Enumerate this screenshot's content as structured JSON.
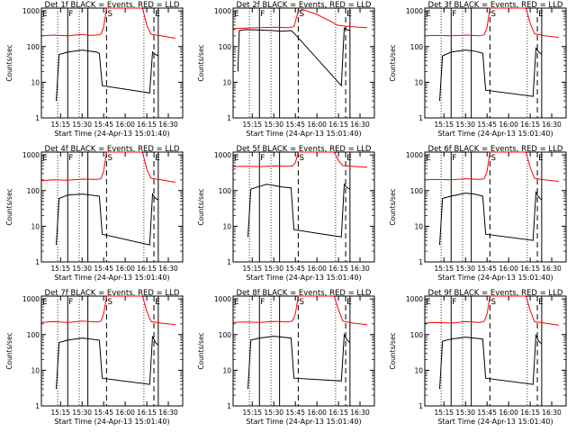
{
  "chart_data": [
    {
      "type": "line",
      "title": "Det 1f BLACK = Events, RED = LLD",
      "xlabel": "Start Time (24-Apr-13 15:01:40)",
      "ylabel": "Counts/sec",
      "yscale": "log",
      "ylim": [
        1,
        1200
      ],
      "xlim": [
        "15:01:40",
        "16:40:00"
      ],
      "x_ticks": [
        "15:15",
        "15:30",
        "15:45",
        "16:00",
        "16:15",
        "16:30"
      ],
      "y_ticks": [
        "1",
        "10",
        "100",
        "1000"
      ],
      "markers": [
        "E",
        "F",
        "S",
        "E"
      ],
      "series": [
        {
          "color": "#000000",
          "x": [
            "15:12",
            "15:14",
            "15:20",
            "15:25",
            "15:30",
            "15:35",
            "15:40",
            "15:42",
            "15:44",
            "16:17",
            "16:19",
            "16:21",
            "16:23"
          ],
          "y": [
            3,
            60,
            70,
            75,
            80,
            75,
            70,
            65,
            8,
            5,
            70,
            60,
            55
          ]
        },
        {
          "color": "#ff0000",
          "x": [
            "15:02",
            "15:10",
            "15:20",
            "15:30",
            "15:35",
            "15:40",
            "15:43",
            "15:45",
            "15:47",
            "16:12",
            "16:15",
            "16:18",
            "16:25",
            "16:35"
          ],
          "y": [
            200,
            210,
            200,
            220,
            205,
            210,
            220,
            350,
            1200,
            1200,
            400,
            220,
            200,
            170
          ]
        }
      ]
    },
    {
      "type": "line",
      "title": "Det 2f BLACK = Events, RED = LLD",
      "xlabel": "Start Time (24-Apr-13 15:01:40)",
      "ylabel": "Counts/sec",
      "yscale": "log",
      "ylim": [
        1,
        1200
      ],
      "xlim": [
        "15:01:40",
        "16:40:00"
      ],
      "x_ticks": [
        "15:15",
        "15:30",
        "15:45",
        "16:00",
        "16:15",
        "16:30"
      ],
      "y_ticks": [
        "1",
        "10",
        "100",
        "1000"
      ],
      "markers": [
        "E",
        "F",
        "S",
        "E"
      ],
      "series": [
        {
          "color": "#000000",
          "x": [
            "15:05",
            "15:06",
            "15:10",
            "15:20",
            "15:30",
            "15:35",
            "15:42",
            "15:44",
            "16:17",
            "16:19",
            "16:21",
            "16:23"
          ],
          "y": [
            20,
            280,
            300,
            290,
            280,
            270,
            280,
            240,
            8,
            330,
            300,
            280
          ]
        },
        {
          "color": "#ff0000",
          "x": [
            "15:02",
            "15:10",
            "15:20",
            "15:30",
            "15:40",
            "15:44",
            "15:47",
            "15:50",
            "16:00",
            "16:10",
            "16:14",
            "16:18",
            "16:25",
            "16:35"
          ],
          "y": [
            320,
            330,
            340,
            350,
            340,
            360,
            1000,
            1100,
            800,
            500,
            400,
            380,
            360,
            340
          ]
        }
      ]
    },
    {
      "type": "line",
      "title": "Det 3f BLACK = Events, RED = LLD",
      "xlabel": "Start Time (24-Apr-13 15:01:40)",
      "ylabel": "Counts/sec",
      "yscale": "log",
      "ylim": [
        1,
        1200
      ],
      "xlim": [
        "15:01:40",
        "16:40:00"
      ],
      "x_ticks": [
        "15:15",
        "15:30",
        "15:45",
        "16:00",
        "16:15",
        "16:30"
      ],
      "y_ticks": [
        "1",
        "10",
        "100",
        "1000"
      ],
      "markers": [
        "E",
        "F",
        "S",
        "E"
      ],
      "series": [
        {
          "color": "#000000",
          "x": [
            "15:12",
            "15:14",
            "15:20",
            "15:30",
            "15:36",
            "15:42",
            "15:44",
            "16:17",
            "16:19",
            "16:21",
            "16:23"
          ],
          "y": [
            3,
            55,
            70,
            80,
            75,
            65,
            6,
            4,
            90,
            70,
            60
          ]
        },
        {
          "color": "#ff0000",
          "x": [
            "15:02",
            "15:10",
            "15:20",
            "15:30",
            "15:40",
            "15:43",
            "15:45",
            "15:47",
            "16:12",
            "16:15",
            "16:18",
            "16:25",
            "16:35"
          ],
          "y": [
            200,
            205,
            200,
            210,
            200,
            215,
            350,
            1200,
            1200,
            450,
            230,
            200,
            180
          ]
        }
      ]
    },
    {
      "type": "line",
      "title": "Det 4f BLACK = Events, RED = LLD",
      "xlabel": "Start Time (24-Apr-13 15:01:40)",
      "ylabel": "Counts/sec",
      "yscale": "log",
      "ylim": [
        1,
        1200
      ],
      "xlim": [
        "15:01:40",
        "16:40:00"
      ],
      "x_ticks": [
        "15:15",
        "15:30",
        "15:45",
        "16:00",
        "16:15",
        "16:30"
      ],
      "y_ticks": [
        "1",
        "10",
        "100",
        "1000"
      ],
      "markers": [
        "E",
        "F",
        "S",
        "E"
      ],
      "series": [
        {
          "color": "#000000",
          "x": [
            "15:12",
            "15:14",
            "15:20",
            "15:30",
            "15:36",
            "15:42",
            "15:44",
            "16:17",
            "16:19",
            "16:21",
            "16:23"
          ],
          "y": [
            3,
            60,
            75,
            80,
            75,
            70,
            6,
            3,
            80,
            60,
            55
          ]
        },
        {
          "color": "#ff0000",
          "x": [
            "15:02",
            "15:10",
            "15:20",
            "15:30",
            "15:40",
            "15:43",
            "15:45",
            "15:47",
            "16:12",
            "16:15",
            "16:18",
            "16:25",
            "16:35"
          ],
          "y": [
            190,
            200,
            195,
            210,
            205,
            215,
            350,
            1200,
            1200,
            400,
            220,
            200,
            170
          ]
        }
      ]
    },
    {
      "type": "line",
      "title": "Det 5f BLACK = Events, RED = LLD",
      "xlabel": "Start Time (24-Apr-13 15:01:40)",
      "ylabel": "Counts/sec",
      "yscale": "log",
      "ylim": [
        1,
        1200
      ],
      "xlim": [
        "15:01:40",
        "16:40:00"
      ],
      "x_ticks": [
        "15:15",
        "15:30",
        "15:45",
        "16:00",
        "16:15",
        "16:30"
      ],
      "y_ticks": [
        "1",
        "10",
        "100",
        "1000"
      ],
      "markers": [
        "E",
        "F",
        "S",
        "E"
      ],
      "series": [
        {
          "color": "#000000",
          "x": [
            "15:12",
            "15:14",
            "15:20",
            "15:25",
            "15:30",
            "15:36",
            "15:42",
            "15:44",
            "16:17",
            "16:19",
            "16:21",
            "16:23"
          ],
          "y": [
            5,
            110,
            130,
            150,
            140,
            125,
            120,
            8,
            5,
            150,
            120,
            110
          ]
        },
        {
          "color": "#ff0000",
          "x": [
            "15:02",
            "15:10",
            "15:20",
            "15:30",
            "15:40",
            "15:43",
            "15:45",
            "15:47",
            "16:12",
            "16:15",
            "16:18",
            "16:25",
            "16:35"
          ],
          "y": [
            470,
            480,
            470,
            490,
            480,
            490,
            600,
            1200,
            1200,
            700,
            500,
            480,
            450
          ]
        }
      ]
    },
    {
      "type": "line",
      "title": "Det 6f BLACK = Events, RED = LLD",
      "xlabel": "Start Time (24-Apr-13 15:01:40)",
      "ylabel": "Counts/sec",
      "yscale": "log",
      "ylim": [
        1,
        1200
      ],
      "xlim": [
        "15:01:40",
        "16:40:00"
      ],
      "x_ticks": [
        "15:15",
        "15:30",
        "15:45",
        "16:00",
        "16:15",
        "16:30"
      ],
      "y_ticks": [
        "1",
        "10",
        "100",
        "1000"
      ],
      "markers": [
        "E",
        "F",
        "S",
        "E"
      ],
      "series": [
        {
          "color": "#000000",
          "x": [
            "15:12",
            "15:14",
            "15:20",
            "15:30",
            "15:36",
            "15:42",
            "15:44",
            "16:17",
            "16:19",
            "16:21",
            "16:23"
          ],
          "y": [
            3,
            60,
            70,
            85,
            80,
            70,
            6,
            4,
            90,
            65,
            55
          ]
        },
        {
          "color": "#ff0000",
          "x": [
            "15:02",
            "15:10",
            "15:20",
            "15:30",
            "15:40",
            "15:43",
            "15:45",
            "15:47",
            "16:12",
            "16:15",
            "16:18",
            "16:25",
            "16:35"
          ],
          "y": [
            200,
            205,
            200,
            215,
            205,
            215,
            350,
            1200,
            1200,
            450,
            220,
            200,
            180
          ]
        }
      ]
    },
    {
      "type": "line",
      "title": "Det 7f BLACK = Events, RED = LLD",
      "xlabel": "Start Time (24-Apr-13 15:01:40)",
      "ylabel": "Counts/sec",
      "yscale": "log",
      "ylim": [
        1,
        1200
      ],
      "xlim": [
        "15:01:40",
        "16:40:00"
      ],
      "x_ticks": [
        "15:15",
        "15:30",
        "15:45",
        "16:00",
        "16:15",
        "16:30"
      ],
      "y_ticks": [
        "1",
        "10",
        "100",
        "1000"
      ],
      "markers": [
        "E",
        "F",
        "S",
        "E"
      ],
      "series": [
        {
          "color": "#000000",
          "x": [
            "15:12",
            "15:14",
            "15:20",
            "15:30",
            "15:36",
            "15:42",
            "15:44",
            "16:17",
            "16:19",
            "16:21",
            "16:23"
          ],
          "y": [
            3,
            60,
            70,
            80,
            75,
            70,
            6,
            4,
            90,
            60,
            50
          ]
        },
        {
          "color": "#ff0000",
          "x": [
            "15:02",
            "15:10",
            "15:20",
            "15:30",
            "15:40",
            "15:43",
            "15:45",
            "15:47",
            "16:12",
            "16:15",
            "16:18",
            "16:25",
            "16:35"
          ],
          "y": [
            220,
            230,
            220,
            240,
            225,
            235,
            380,
            1200,
            1200,
            450,
            230,
            210,
            190
          ]
        }
      ]
    },
    {
      "type": "line",
      "title": "Det 8f BLACK = Events, RED = LLD",
      "xlabel": "Start Time (24-Apr-13 15:01:40)",
      "ylabel": "Counts/sec",
      "yscale": "log",
      "ylim": [
        1,
        1200
      ],
      "xlim": [
        "15:01:40",
        "16:40:00"
      ],
      "x_ticks": [
        "15:15",
        "15:30",
        "15:45",
        "16:00",
        "16:15",
        "16:30"
      ],
      "y_ticks": [
        "1",
        "10",
        "100",
        "1000"
      ],
      "markers": [
        "E",
        "F",
        "S",
        "E"
      ],
      "series": [
        {
          "color": "#000000",
          "x": [
            "15:12",
            "15:14",
            "15:20",
            "15:30",
            "15:36",
            "15:42",
            "15:44",
            "16:17",
            "16:19",
            "16:21",
            "16:23"
          ],
          "y": [
            3,
            70,
            80,
            90,
            85,
            80,
            6,
            5,
            100,
            70,
            60
          ]
        },
        {
          "color": "#ff0000",
          "x": [
            "15:02",
            "15:10",
            "15:20",
            "15:30",
            "15:40",
            "15:43",
            "15:45",
            "15:47",
            "16:12",
            "16:15",
            "16:18",
            "16:25",
            "16:35"
          ],
          "y": [
            220,
            225,
            220,
            235,
            225,
            240,
            380,
            1200,
            1200,
            500,
            240,
            210,
            190
          ]
        }
      ]
    },
    {
      "type": "line",
      "title": "Det 9f BLACK = Events, RED = LLD",
      "xlabel": "Start Time (24-Apr-13 15:01:40)",
      "ylabel": "Counts/sec",
      "yscale": "log",
      "ylim": [
        1,
        1200
      ],
      "xlim": [
        "15:01:40",
        "16:40:00"
      ],
      "x_ticks": [
        "15:15",
        "15:30",
        "15:45",
        "16:00",
        "16:15",
        "16:30"
      ],
      "y_ticks": [
        "1",
        "10",
        "100",
        "1000"
      ],
      "markers": [
        "E",
        "F",
        "S",
        "E"
      ],
      "series": [
        {
          "color": "#000000",
          "x": [
            "15:12",
            "15:14",
            "15:20",
            "15:30",
            "15:36",
            "15:42",
            "15:44",
            "16:17",
            "16:19",
            "16:21",
            "16:23"
          ],
          "y": [
            3,
            65,
            75,
            85,
            80,
            75,
            6,
            4,
            95,
            65,
            55
          ]
        },
        {
          "color": "#ff0000",
          "x": [
            "15:02",
            "15:10",
            "15:20",
            "15:30",
            "15:40",
            "15:43",
            "15:45",
            "15:47",
            "16:12",
            "16:15",
            "16:18",
            "16:25",
            "16:35"
          ],
          "y": [
            210,
            220,
            210,
            230,
            220,
            235,
            380,
            1200,
            1200,
            480,
            230,
            210,
            185
          ]
        }
      ]
    }
  ],
  "time_markers": {
    "dotted": [
      "15:13",
      "15:28",
      "16:13"
    ],
    "solid": [
      "15:20",
      "15:34",
      "16:23"
    ],
    "dashed": [
      "15:47",
      "16:20"
    ]
  }
}
